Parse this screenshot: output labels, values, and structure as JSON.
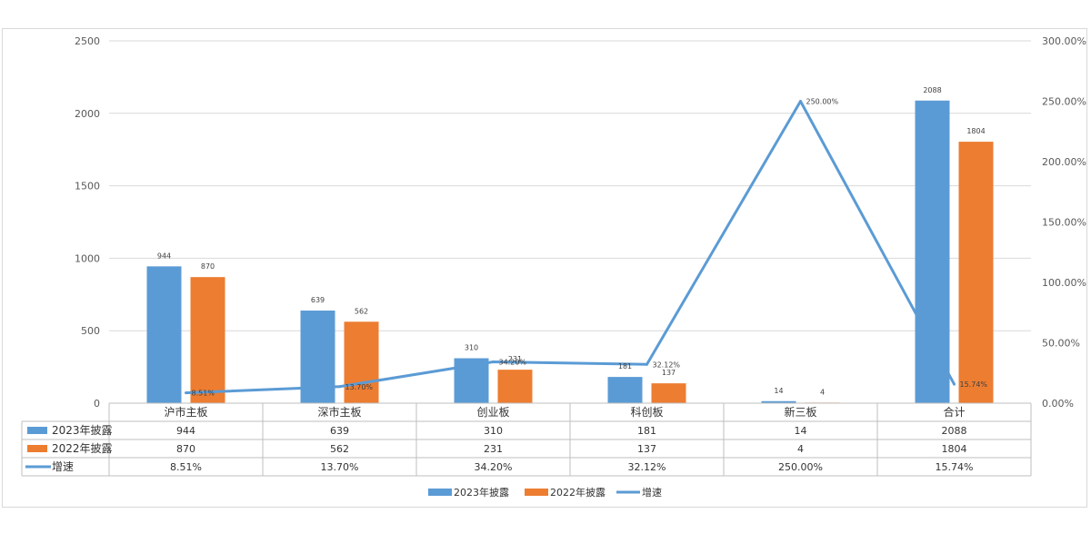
{
  "chart_data": {
    "type": "bar",
    "categories": [
      "沪市主板",
      "深市主板",
      "创业板",
      "科创板",
      "新三板",
      "合计"
    ],
    "series": [
      {
        "name": "2023年披露",
        "type": "bar",
        "axis": "left",
        "color": "#5b9bd5",
        "values": [
          944,
          639,
          310,
          181,
          14,
          2088
        ],
        "labels": [
          "944",
          "639",
          "310",
          "181",
          "14",
          "2088"
        ]
      },
      {
        "name": "2022年披露",
        "type": "bar",
        "axis": "left",
        "color": "#ed7d31",
        "values": [
          870,
          562,
          231,
          137,
          4,
          1804
        ],
        "labels": [
          "870",
          "562",
          "231",
          "137",
          "4",
          "1804"
        ]
      },
      {
        "name": "增速",
        "type": "line",
        "axis": "right",
        "color": "#5b9bd5",
        "values": [
          8.51,
          13.7,
          34.2,
          32.12,
          250.0,
          15.74
        ],
        "labels": [
          "8.51%",
          "13.70%",
          "34.20%",
          "32.12%",
          "250.00%",
          "15.74%"
        ]
      }
    ],
    "ylim": [
      0,
      2500
    ],
    "yticks": [
      "0",
      "500",
      "1000",
      "1500",
      "2000",
      "2500"
    ],
    "y2lim": [
      0,
      300
    ],
    "y2ticks": [
      "0.00%",
      "50.00%",
      "100.00%",
      "150.00%",
      "200.00%",
      "250.00%",
      "300.00%"
    ],
    "grid": true,
    "legend_position": "bottom",
    "data_table": true
  }
}
